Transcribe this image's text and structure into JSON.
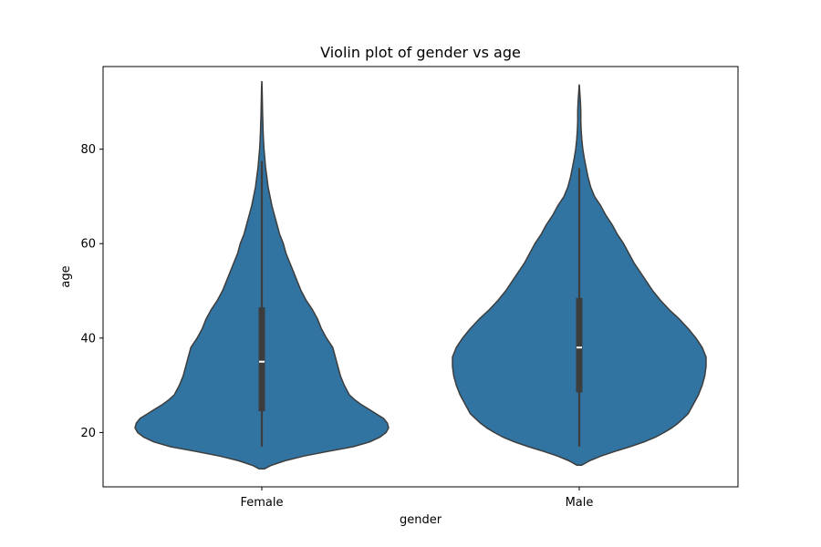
{
  "chart_data": {
    "type": "violin",
    "title": "Violin plot of gender vs age",
    "xlabel": "gender",
    "ylabel": "age",
    "ylim": [
      8.5,
      97.5
    ],
    "yticks": [
      20,
      40,
      60,
      80
    ],
    "grid": false,
    "categories": [
      "Female",
      "Male"
    ],
    "colors": {
      "fill": "#3274a1",
      "edge": "#3d3d3d",
      "box": "#3d3d3d",
      "median": "#ffffff"
    },
    "violins": [
      {
        "category": "Female",
        "min": 17,
        "q1": 24.5,
        "median": 35,
        "q3": 46.5,
        "max": 77.5,
        "extent": [
          12.3,
          94.3
        ],
        "density": [
          [
            12.3,
            0.02
          ],
          [
            13,
            0.07
          ],
          [
            14,
            0.18
          ],
          [
            15,
            0.33
          ],
          [
            16,
            0.52
          ],
          [
            17,
            0.72
          ],
          [
            18,
            0.85
          ],
          [
            19,
            0.93
          ],
          [
            20,
            0.98
          ],
          [
            21,
            1.0
          ],
          [
            22,
            0.99
          ],
          [
            23,
            0.96
          ],
          [
            24,
            0.9
          ],
          [
            25,
            0.84
          ],
          [
            26,
            0.78
          ],
          [
            27,
            0.73
          ],
          [
            28,
            0.69
          ],
          [
            30,
            0.65
          ],
          [
            32,
            0.62
          ],
          [
            34,
            0.6
          ],
          [
            36,
            0.58
          ],
          [
            38,
            0.56
          ],
          [
            40,
            0.51
          ],
          [
            42,
            0.47
          ],
          [
            44,
            0.44
          ],
          [
            46,
            0.4
          ],
          [
            48,
            0.35
          ],
          [
            50,
            0.31
          ],
          [
            52,
            0.28
          ],
          [
            54,
            0.25
          ],
          [
            56,
            0.22
          ],
          [
            58,
            0.19
          ],
          [
            60,
            0.17
          ],
          [
            62,
            0.14
          ],
          [
            64,
            0.12
          ],
          [
            66,
            0.1
          ],
          [
            68,
            0.08
          ],
          [
            70,
            0.065
          ],
          [
            72,
            0.05
          ],
          [
            74,
            0.04
          ],
          [
            76,
            0.03
          ],
          [
            78,
            0.024
          ],
          [
            80,
            0.017
          ],
          [
            82,
            0.013
          ],
          [
            84,
            0.01
          ],
          [
            86,
            0.008
          ],
          [
            88,
            0.006
          ],
          [
            90,
            0.004
          ],
          [
            92,
            0.003
          ],
          [
            94.3,
            0.001
          ]
        ]
      },
      {
        "category": "Male",
        "min": 17,
        "q1": 28.5,
        "median": 38,
        "q3": 48.5,
        "max": 76,
        "extent": [
          13.1,
          93.6
        ],
        "density": [
          [
            13.1,
            0.02
          ],
          [
            14,
            0.08
          ],
          [
            15,
            0.17
          ],
          [
            16,
            0.28
          ],
          [
            17,
            0.4
          ],
          [
            18,
            0.51
          ],
          [
            19,
            0.6
          ],
          [
            20,
            0.67
          ],
          [
            21,
            0.73
          ],
          [
            22,
            0.78
          ],
          [
            23,
            0.82
          ],
          [
            24,
            0.86
          ],
          [
            26,
            0.9
          ],
          [
            28,
            0.94
          ],
          [
            30,
            0.97
          ],
          [
            32,
            0.99
          ],
          [
            34,
            1.0
          ],
          [
            36,
            1.0
          ],
          [
            38,
            0.97
          ],
          [
            40,
            0.92
          ],
          [
            42,
            0.86
          ],
          [
            44,
            0.79
          ],
          [
            46,
            0.71
          ],
          [
            48,
            0.64
          ],
          [
            50,
            0.58
          ],
          [
            52,
            0.53
          ],
          [
            54,
            0.48
          ],
          [
            56,
            0.43
          ],
          [
            58,
            0.39
          ],
          [
            60,
            0.35
          ],
          [
            62,
            0.3
          ],
          [
            64,
            0.26
          ],
          [
            66,
            0.21
          ],
          [
            68,
            0.17
          ],
          [
            70,
            0.12
          ],
          [
            72,
            0.09
          ],
          [
            74,
            0.07
          ],
          [
            76,
            0.055
          ],
          [
            78,
            0.04
          ],
          [
            80,
            0.028
          ],
          [
            82,
            0.02
          ],
          [
            84,
            0.015
          ],
          [
            86,
            0.012
          ],
          [
            88,
            0.012
          ],
          [
            90,
            0.009
          ],
          [
            92,
            0.004
          ],
          [
            93.6,
            0.001
          ]
        ]
      }
    ]
  }
}
